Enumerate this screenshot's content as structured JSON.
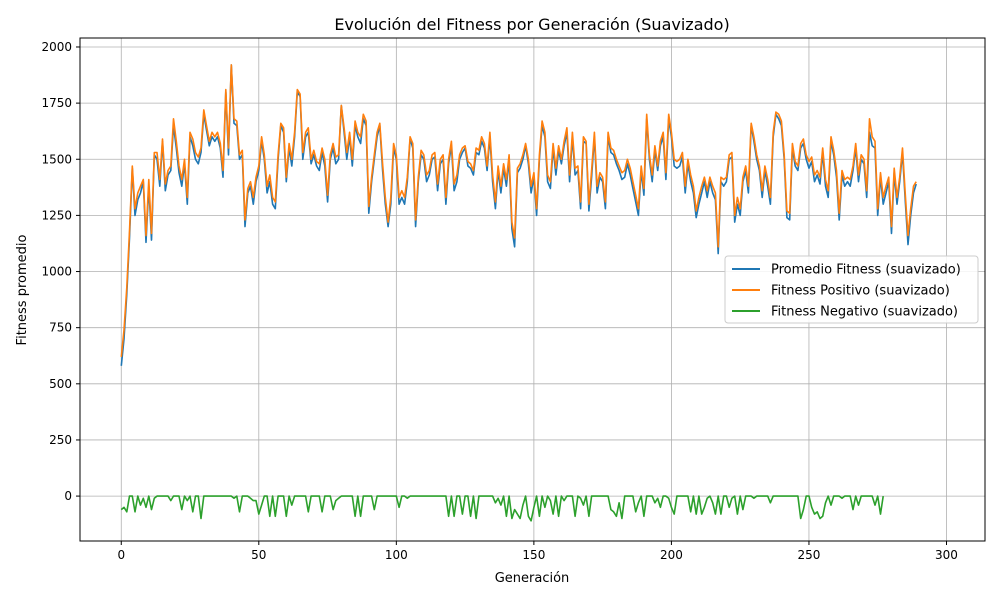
{
  "chart_data": {
    "type": "line",
    "title": "Evolución del Fitness por Generación (Suavizado)",
    "xlabel": "Generación",
    "ylabel": "Fitness promedio",
    "xlim": [
      -15,
      314
    ],
    "ylim": [
      -200,
      2040
    ],
    "xticks": [
      0,
      50,
      100,
      150,
      200,
      250,
      300
    ],
    "yticks": [
      0,
      250,
      500,
      750,
      1000,
      1250,
      1500,
      1750,
      2000
    ],
    "grid": true,
    "legend_position": "center-right",
    "colors": {
      "promedio": "#1f77b4",
      "positivo": "#ff7f0e",
      "negativo": "#2ca02c"
    },
    "series": [
      {
        "name": "Promedio Fitness (suavizado)",
        "key": "promedio",
        "x_start": 0,
        "values": [
          580,
          700,
          900,
          1150,
          1460,
          1250,
          1320,
          1350,
          1400,
          1130,
          1380,
          1140,
          1520,
          1500,
          1380,
          1580,
          1360,
          1430,
          1450,
          1650,
          1550,
          1440,
          1380,
          1480,
          1300,
          1600,
          1560,
          1500,
          1480,
          1530,
          1700,
          1630,
          1560,
          1600,
          1580,
          1600,
          1550,
          1420,
          1800,
          1520,
          1920,
          1660,
          1650,
          1500,
          1520,
          1200,
          1350,
          1380,
          1300,
          1400,
          1450,
          1580,
          1500,
          1350,
          1400,
          1300,
          1280,
          1500,
          1650,
          1620,
          1400,
          1550,
          1470,
          1600,
          1800,
          1780,
          1500,
          1600,
          1620,
          1480,
          1520,
          1470,
          1450,
          1530,
          1470,
          1310,
          1500,
          1550,
          1480,
          1500,
          1740,
          1620,
          1500,
          1600,
          1470,
          1650,
          1600,
          1570,
          1680,
          1650,
          1260,
          1400,
          1500,
          1600,
          1650,
          1450,
          1300,
          1200,
          1300,
          1550,
          1500,
          1300,
          1330,
          1300,
          1400,
          1590,
          1550,
          1200,
          1400,
          1520,
          1500,
          1400,
          1430,
          1500,
          1510,
          1360,
          1480,
          1500,
          1300,
          1480,
          1560,
          1360,
          1400,
          1500,
          1530,
          1550,
          1470,
          1460,
          1430,
          1530,
          1520,
          1580,
          1550,
          1450,
          1600,
          1400,
          1280,
          1450,
          1350,
          1460,
          1380,
          1500,
          1190,
          1110,
          1440,
          1460,
          1500,
          1560,
          1480,
          1350,
          1420,
          1250,
          1500,
          1650,
          1600,
          1400,
          1370,
          1550,
          1430,
          1540,
          1480,
          1560,
          1620,
          1400,
          1600,
          1430,
          1450,
          1280,
          1580,
          1570,
          1270,
          1420,
          1600,
          1350,
          1420,
          1400,
          1280,
          1600,
          1530,
          1520,
          1480,
          1450,
          1410,
          1420,
          1480,
          1430,
          1370,
          1310,
          1250,
          1450,
          1340,
          1680,
          1500,
          1400,
          1540,
          1450,
          1560,
          1600,
          1410,
          1680,
          1600,
          1470,
          1460,
          1470,
          1510,
          1350,
          1480,
          1400,
          1350,
          1240,
          1300,
          1350,
          1400,
          1330,
          1400,
          1350,
          1320,
          1080,
          1400,
          1380,
          1400,
          1500,
          1510,
          1220,
          1300,
          1250,
          1400,
          1450,
          1350,
          1650,
          1580,
          1500,
          1450,
          1330,
          1450,
          1380,
          1300,
          1600,
          1700,
          1680,
          1650,
          1500,
          1240,
          1230,
          1550,
          1470,
          1450,
          1550,
          1570,
          1500,
          1460,
          1490,
          1400,
          1430,
          1390,
          1530,
          1380,
          1330,
          1580,
          1520,
          1420,
          1230,
          1430,
          1380,
          1400,
          1380,
          1450,
          1550,
          1400,
          1500,
          1480,
          1330,
          1620,
          1560,
          1550,
          1250,
          1420,
          1300,
          1350,
          1400,
          1170,
          1440,
          1300,
          1400,
          1530,
          1320,
          1120,
          1250,
          1350,
          1390
        ]
      },
      {
        "name": "Fitness Positivo (suavizado)",
        "key": "positivo",
        "x_start": 0,
        "values": [
          620,
          740,
          930,
          1180,
          1470,
          1280,
          1350,
          1380,
          1410,
          1160,
          1410,
          1170,
          1530,
          1530,
          1410,
          1590,
          1390,
          1450,
          1470,
          1680,
          1580,
          1470,
          1410,
          1500,
          1330,
          1620,
          1590,
          1530,
          1510,
          1550,
          1720,
          1650,
          1580,
          1620,
          1600,
          1620,
          1570,
          1450,
          1810,
          1550,
          1920,
          1680,
          1670,
          1520,
          1540,
          1230,
          1370,
          1400,
          1330,
          1420,
          1470,
          1600,
          1520,
          1380,
          1430,
          1330,
          1310,
          1520,
          1660,
          1640,
          1420,
          1570,
          1500,
          1620,
          1810,
          1790,
          1530,
          1620,
          1640,
          1500,
          1540,
          1490,
          1480,
          1550,
          1500,
          1340,
          1520,
          1570,
          1510,
          1520,
          1740,
          1640,
          1530,
          1620,
          1500,
          1670,
          1620,
          1600,
          1700,
          1670,
          1290,
          1420,
          1520,
          1620,
          1660,
          1480,
          1330,
          1220,
          1330,
          1570,
          1520,
          1330,
          1360,
          1330,
          1420,
          1600,
          1570,
          1230,
          1420,
          1540,
          1520,
          1430,
          1450,
          1520,
          1530,
          1390,
          1500,
          1520,
          1330,
          1500,
          1580,
          1390,
          1430,
          1520,
          1550,
          1560,
          1490,
          1480,
          1450,
          1550,
          1540,
          1600,
          1570,
          1470,
          1620,
          1430,
          1310,
          1470,
          1380,
          1480,
          1410,
          1520,
          1220,
          1150,
          1460,
          1480,
          1520,
          1570,
          1500,
          1380,
          1440,
          1280,
          1520,
          1670,
          1620,
          1430,
          1400,
          1570,
          1460,
          1560,
          1500,
          1580,
          1640,
          1430,
          1620,
          1460,
          1470,
          1310,
          1600,
          1580,
          1300,
          1450,
          1620,
          1380,
          1440,
          1420,
          1310,
          1620,
          1550,
          1540,
          1500,
          1470,
          1440,
          1450,
          1500,
          1460,
          1400,
          1340,
          1280,
          1470,
          1370,
          1700,
          1520,
          1430,
          1560,
          1470,
          1580,
          1620,
          1440,
          1700,
          1620,
          1500,
          1490,
          1500,
          1530,
          1380,
          1500,
          1430,
          1380,
          1270,
          1330,
          1380,
          1420,
          1360,
          1420,
          1380,
          1350,
          1110,
          1420,
          1410,
          1420,
          1520,
          1530,
          1250,
          1330,
          1280,
          1420,
          1470,
          1380,
          1660,
          1600,
          1520,
          1470,
          1360,
          1470,
          1410,
          1330,
          1620,
          1710,
          1700,
          1670,
          1520,
          1270,
          1260,
          1570,
          1490,
          1470,
          1570,
          1590,
          1520,
          1490,
          1510,
          1430,
          1450,
          1420,
          1550,
          1410,
          1360,
          1600,
          1540,
          1450,
          1260,
          1450,
          1410,
          1420,
          1410,
          1470,
          1570,
          1430,
          1520,
          1500,
          1360,
          1680,
          1600,
          1580,
          1280,
          1440,
          1330,
          1380,
          1420,
          1200,
          1460,
          1330,
          1420,
          1550,
          1350,
          1160,
          1280,
          1380,
          1400
        ]
      },
      {
        "name": "Fitness Negativo (suavizado)",
        "key": "negativo",
        "x_start": 0,
        "values": [
          -60,
          -50,
          -70,
          0,
          0,
          -70,
          0,
          -40,
          -10,
          -50,
          0,
          -60,
          -10,
          0,
          0,
          0,
          0,
          0,
          -20,
          0,
          0,
          0,
          -60,
          0,
          -20,
          0,
          -70,
          0,
          0,
          -100,
          0,
          0,
          0,
          0,
          0,
          0,
          0,
          0,
          0,
          0,
          0,
          -10,
          0,
          -70,
          0,
          0,
          0,
          -10,
          -20,
          -20,
          -80,
          -40,
          0,
          0,
          -90,
          0,
          -90,
          0,
          0,
          0,
          -90,
          0,
          -40,
          0,
          0,
          0,
          0,
          0,
          -70,
          0,
          0,
          0,
          0,
          -70,
          0,
          0,
          0,
          -60,
          -20,
          -10,
          0,
          0,
          0,
          0,
          0,
          -90,
          0,
          -90,
          0,
          0,
          0,
          0,
          -60,
          0,
          0,
          0,
          0,
          0,
          0,
          0,
          0,
          -50,
          0,
          0,
          -10,
          0,
          0,
          0,
          0,
          0,
          0,
          0,
          0,
          0,
          0,
          0,
          0,
          0,
          0,
          -90,
          0,
          -90,
          0,
          0,
          -80,
          0,
          0,
          -90,
          0,
          -100,
          0,
          0,
          0,
          0,
          0,
          0,
          -30,
          -10,
          -40,
          0,
          -90,
          0,
          -100,
          -60,
          -80,
          -100,
          -40,
          0,
          -90,
          -110,
          -50,
          0,
          -90,
          0,
          -50,
          0,
          -20,
          -80,
          0,
          -90,
          0,
          -20,
          0,
          0,
          0,
          -90,
          0,
          -10,
          -40,
          0,
          -90,
          0,
          0,
          0,
          0,
          0,
          0,
          0,
          -60,
          -70,
          -90,
          -30,
          -100,
          0,
          0,
          0,
          0,
          -70,
          -30,
          0,
          -90,
          0,
          0,
          0,
          -30,
          -10,
          -50,
          0,
          0,
          -10,
          -50,
          -80,
          0,
          0,
          0,
          0,
          0,
          -70,
          0,
          -80,
          0,
          -80,
          -50,
          -10,
          0,
          -30,
          -80,
          0,
          -80,
          0,
          0,
          -50,
          -10,
          0,
          -80,
          0,
          -60,
          0,
          0,
          0,
          -10,
          0,
          0,
          0,
          0,
          0,
          -30,
          0,
          0,
          0,
          0,
          0,
          0,
          0,
          0,
          0,
          0,
          -100,
          -60,
          0,
          0,
          -50,
          -80,
          -70,
          -100,
          -90,
          -30,
          0,
          -40,
          0,
          0,
          0,
          -10,
          0,
          0,
          0,
          -60,
          0,
          -40,
          0,
          0,
          0,
          0,
          0,
          -40,
          0,
          -80,
          0
        ]
      }
    ]
  }
}
